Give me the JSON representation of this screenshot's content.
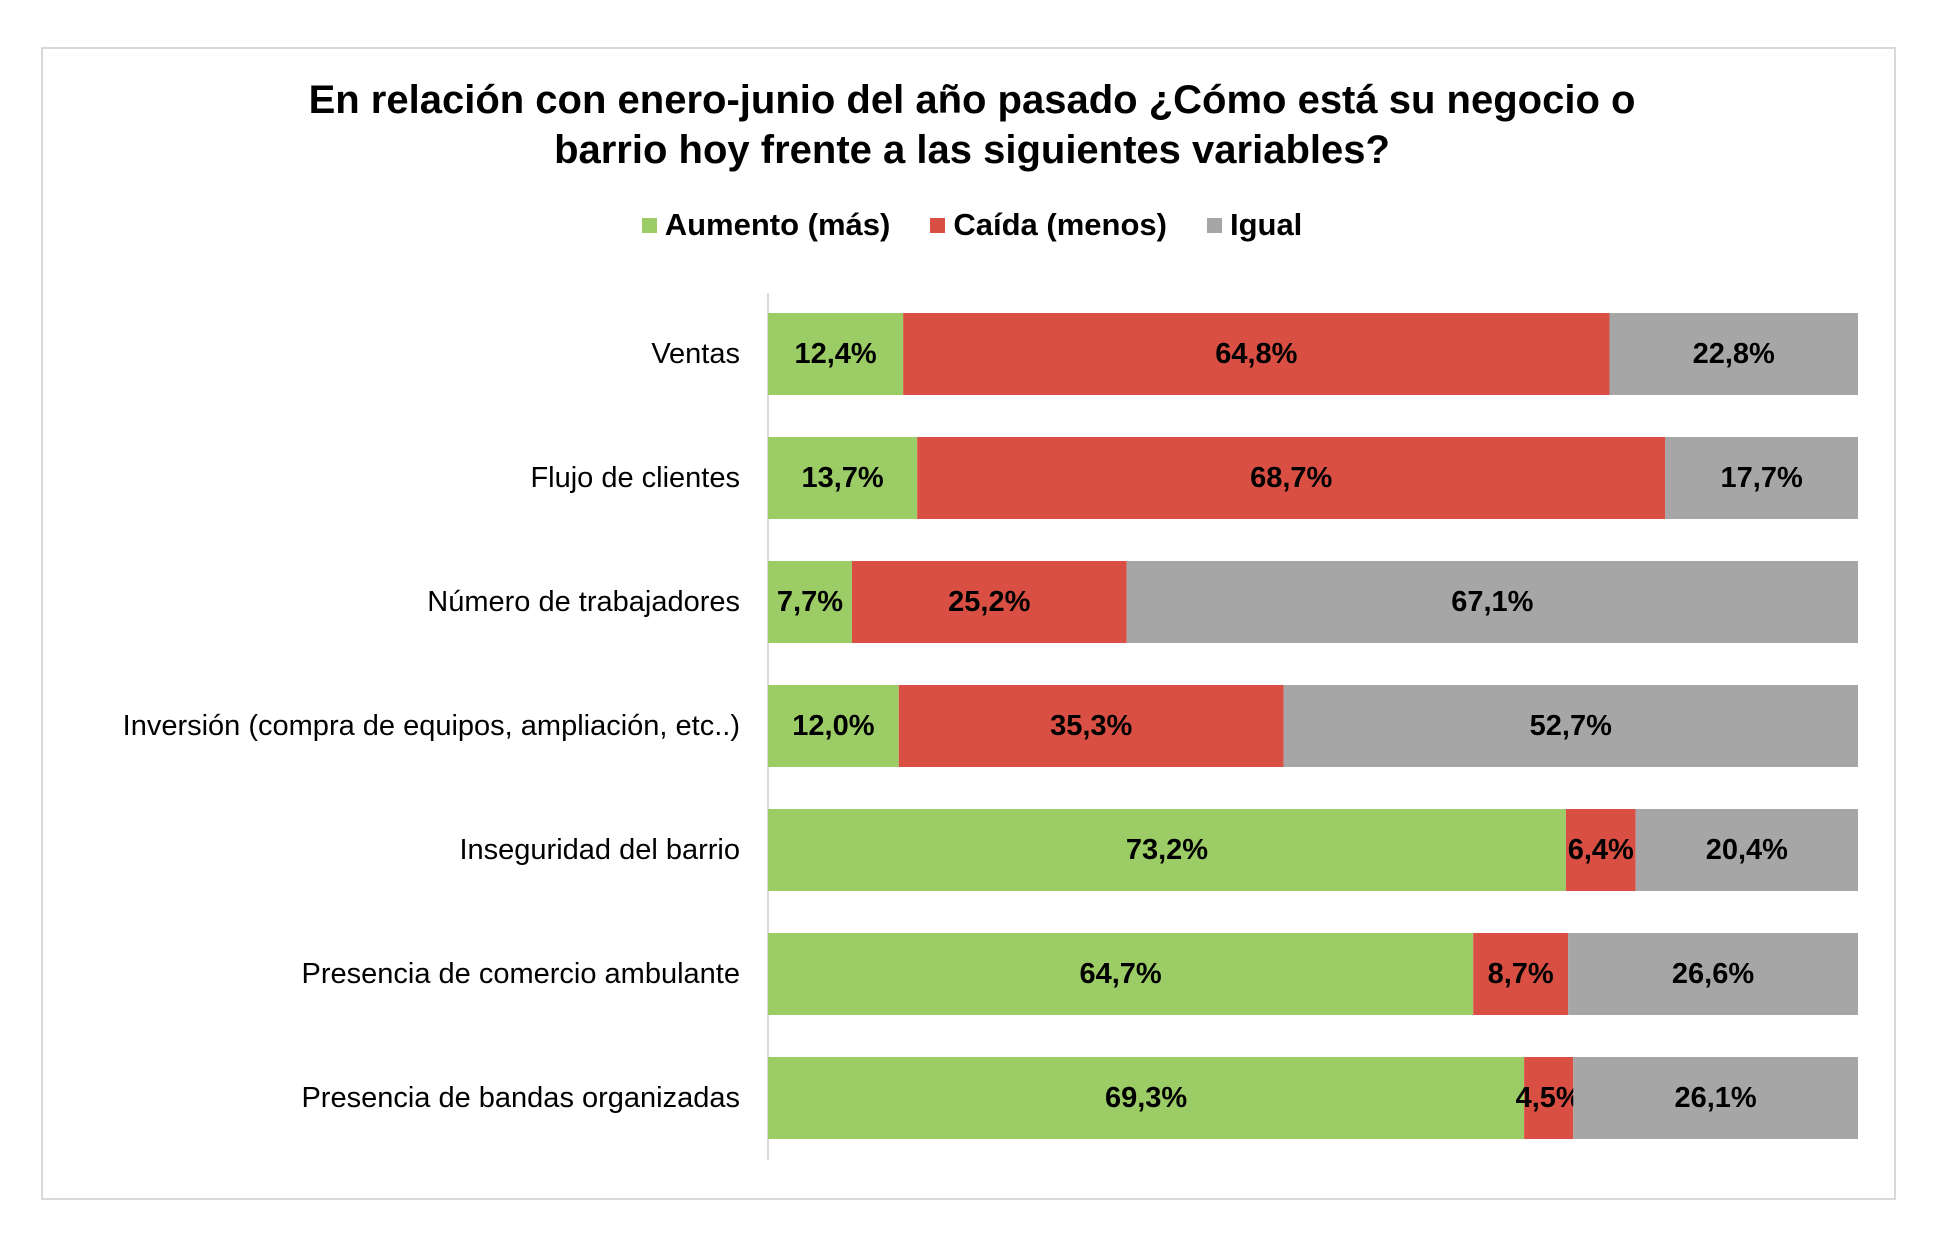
{
  "chart_data": {
    "type": "bar",
    "orientation": "horizontal",
    "stacked": "100%",
    "title": "En relación con enero-junio del año pasado ¿Cómo está su negocio o\nbarrio hoy frente a las siguientes variables?",
    "categories": [
      "Ventas",
      "Flujo de clientes",
      "Número de trabajadores",
      "Inversión (compra de equipos, ampliación, etc..)",
      "Inseguridad del barrio",
      "Presencia de comercio ambulante",
      "Presencia de bandas organizadas"
    ],
    "series": [
      {
        "name": "Aumento (más)",
        "color": "#9ccc65",
        "values": [
          12.4,
          13.7,
          7.7,
          12.0,
          73.2,
          64.7,
          69.3
        ],
        "labels": [
          "12,4%",
          "13,7%",
          "7,7%",
          "12,0%",
          "73,2%",
          "64,7%",
          "69,3%"
        ]
      },
      {
        "name": "Caída (menos)",
        "color": "#d94f43",
        "values": [
          64.8,
          68.7,
          25.2,
          35.3,
          6.4,
          8.7,
          4.5
        ],
        "labels": [
          "64,8%",
          "68,7%",
          "25,2%",
          "35,3%",
          "6,4%",
          "8,7%",
          "4,5%"
        ]
      },
      {
        "name": "Igual",
        "color": "#a6a6a6",
        "values": [
          22.8,
          17.7,
          67.1,
          52.7,
          20.4,
          26.6,
          26.1
        ],
        "labels": [
          "22,8%",
          "17,7%",
          "67,1%",
          "52,7%",
          "20,4%",
          "26,6%",
          "26,1%"
        ]
      }
    ],
    "xlim": [
      0,
      100
    ],
    "legend": "top",
    "grid": false
  }
}
